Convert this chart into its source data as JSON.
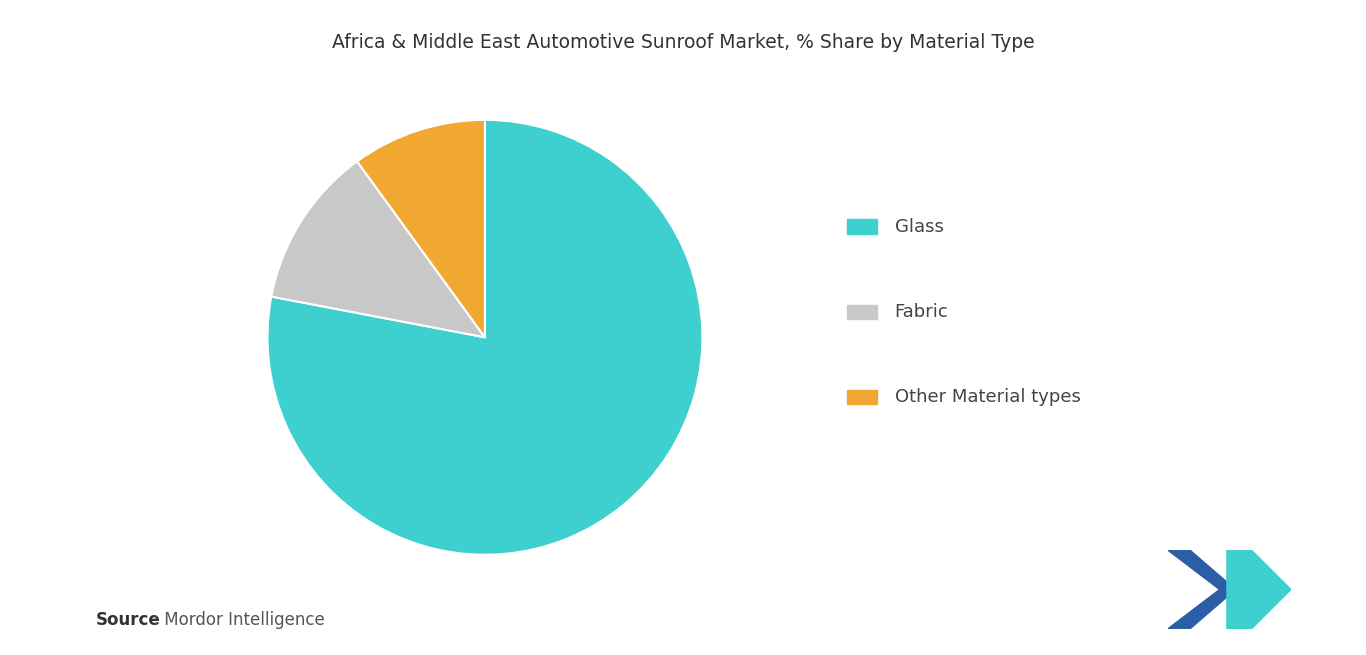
{
  "title": "Africa & Middle East Automotive Sunroof Market, % Share by Material Type",
  "slices": [
    {
      "label": "Glass",
      "value": 78,
      "color": "#3ecfcf"
    },
    {
      "label": "Fabric",
      "value": 12,
      "color": "#c8c8c8"
    },
    {
      "label": "Other Material types",
      "value": 10,
      "color": "#f0a830"
    }
  ],
  "legend_labels": [
    "Glass",
    "Fabric",
    "Other Material types"
  ],
  "legend_colors": [
    "#3ecfcf",
    "#c8c8c8",
    "#f0a830"
  ],
  "source_bold": "Source",
  "source_rest": " : Mordor Intelligence",
  "background_color": "#ffffff",
  "title_fontsize": 13.5,
  "legend_fontsize": 13,
  "source_fontsize": 12,
  "startangle": 90,
  "logo_left_color": "#2b5ea7",
  "logo_right_color": "#3ecfcf"
}
